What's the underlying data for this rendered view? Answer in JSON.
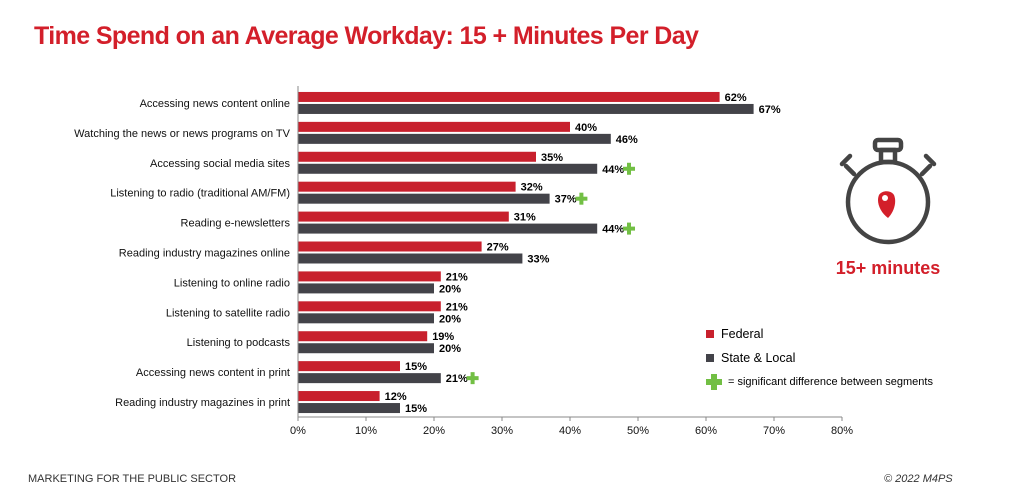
{
  "title": "Time Spend on an Average Workday: 15 + Minutes Per Day",
  "colors": {
    "title": "#d31f2a",
    "federal": "#c8202d",
    "state_local": "#434349",
    "plus": "#72bf44",
    "icon": "#444444"
  },
  "chart_data": {
    "type": "bar",
    "orientation": "horizontal",
    "categories": [
      "Accessing news content online",
      "Watching the news or news programs on TV",
      "Accessing social media sites",
      "Listening to radio (traditional AM/FM)",
      "Reading e-newsletters",
      "Reading industry magazines online",
      "Listening to online radio",
      "Listening to satellite radio",
      "Listening to podcasts",
      "Accessing news content in print",
      "Reading industry magazines in print"
    ],
    "series": [
      {
        "name": "Federal",
        "values": [
          62,
          40,
          35,
          32,
          31,
          27,
          21,
          21,
          19,
          15,
          12
        ]
      },
      {
        "name": "State & Local",
        "values": [
          67,
          46,
          44,
          37,
          44,
          33,
          20,
          20,
          20,
          21,
          15
        ]
      }
    ],
    "significant": [
      false,
      false,
      true,
      true,
      true,
      false,
      false,
      false,
      false,
      true,
      false
    ],
    "xlim": [
      0,
      80
    ],
    "xticks": [
      0,
      10,
      20,
      30,
      40,
      50,
      60,
      70,
      80
    ],
    "xtick_labels": [
      "0%",
      "10%",
      "20%",
      "30%",
      "40%",
      "50%",
      "60%",
      "70%",
      "80%"
    ],
    "value_suffix": "%",
    "grid": false,
    "legend_position": "bottom-right"
  },
  "legend": {
    "federal": "Federal",
    "state_local": "State & Local",
    "significant": "= significant difference between segments"
  },
  "icon": {
    "name": "stopwatch-icon",
    "label": "15+ minutes"
  },
  "footer": {
    "left": "MARKETING FOR THE PUBLIC SECTOR",
    "right": "© 2022 M4PS"
  }
}
